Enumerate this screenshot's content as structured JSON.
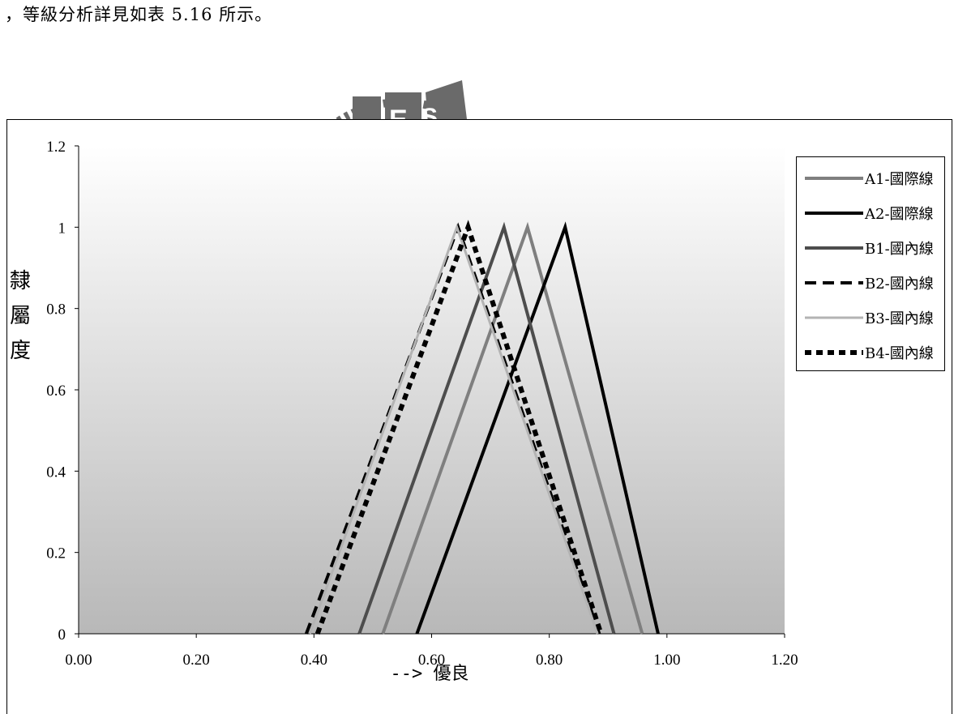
{
  "page": {
    "intro_text": "，等級分析詳見如表 5.16 所示。",
    "watermark_text": "E S A"
  },
  "colors": {
    "A1": "#7f7f7f",
    "A2": "#000000",
    "B1": "#4d4d4d",
    "B2": "#000000",
    "B3": "#b3b3b3",
    "B4": "#000000",
    "plot_top": "#ffffff",
    "plot_bottom": "#b8b8b8",
    "watermark": "#6a6a6a"
  },
  "chart_data": {
    "type": "line",
    "title": "",
    "xlabel": "--> 優良",
    "ylabel": "隸屬度",
    "xlim": [
      0,
      1.2
    ],
    "ylim": [
      0,
      1.2
    ],
    "x_ticks": [
      "0.00",
      "0.20",
      "0.40",
      "0.60",
      "0.80",
      "1.00",
      "1.20"
    ],
    "y_ticks": [
      "0",
      "0.2",
      "0.4",
      "0.6",
      "0.8",
      "1",
      "1.2"
    ],
    "grid": false,
    "legend_position": "right",
    "series": [
      {
        "name": "A1-國際線",
        "style": "solid-thick-gray",
        "x": [
          0.517,
          0.763,
          0.958
        ],
        "y": [
          0,
          1,
          0
        ]
      },
      {
        "name": "A2-國際線",
        "style": "solid-black",
        "x": [
          0.575,
          0.827,
          0.985
        ],
        "y": [
          0,
          1,
          0
        ]
      },
      {
        "name": "B1-國內線",
        "style": "solid-dark-gray",
        "x": [
          0.477,
          0.723,
          0.91
        ],
        "y": [
          0,
          1,
          0
        ]
      },
      {
        "name": "B2-國內線",
        "style": "dashed-black",
        "x": [
          0.387,
          0.645,
          0.885
        ],
        "y": [
          0,
          1,
          0
        ]
      },
      {
        "name": "B3-國內線",
        "style": "solid-light-gray",
        "x": [
          0.393,
          0.643,
          0.882
        ],
        "y": [
          0,
          1,
          0
        ]
      },
      {
        "name": "B4-國內線",
        "style": "dotted-black",
        "x": [
          0.406,
          0.662,
          0.888
        ],
        "y": [
          0,
          1,
          0
        ]
      }
    ]
  }
}
